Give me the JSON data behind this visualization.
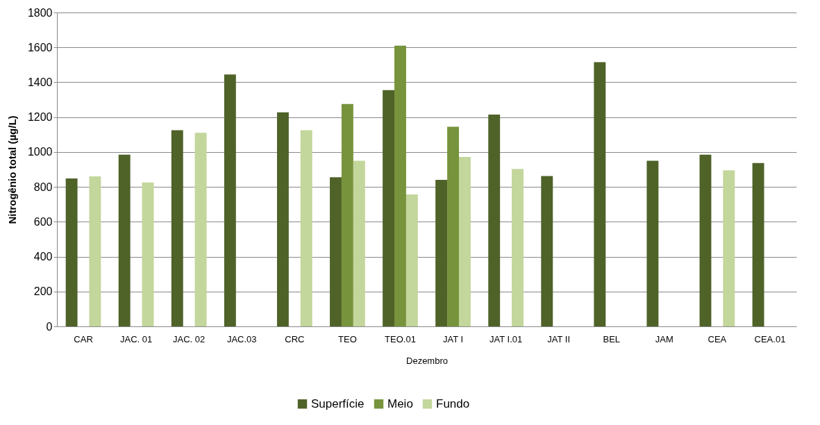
{
  "chart_data": {
    "type": "bar",
    "xlabel": "Dezembro",
    "ylabel": "Nitrogênio total (µg/L)",
    "categories": [
      "CAR",
      "JAC. 01",
      "JAC. 02",
      "JAC.03",
      "CRC",
      "TEO",
      "TEO.01",
      "JAT I",
      "JAT I.01",
      "JAT II",
      "BEL",
      "JAM",
      "CEA",
      "CEA.01"
    ],
    "series": [
      {
        "name": "Superfície",
        "color": "#4f6228",
        "values": [
          848,
          985,
          1125,
          1445,
          1228,
          855,
          1355,
          840,
          1215,
          862,
          1515,
          950,
          985,
          937
        ]
      },
      {
        "name": "Meio",
        "color": "#77933c",
        "values": [
          null,
          null,
          null,
          null,
          null,
          1275,
          1610,
          1145,
          null,
          null,
          null,
          null,
          null,
          null
        ]
      },
      {
        "name": "Fundo",
        "color": "#c3d69b",
        "values": [
          860,
          825,
          1110,
          null,
          1125,
          950,
          757,
          972,
          903,
          null,
          null,
          null,
          895,
          null
        ]
      }
    ],
    "ylim": [
      0,
      1800
    ],
    "yticks": [
      0,
      200,
      400,
      600,
      800,
      1000,
      1200,
      1400,
      1600,
      1800
    ],
    "grid": "y",
    "legend": "bottom"
  }
}
